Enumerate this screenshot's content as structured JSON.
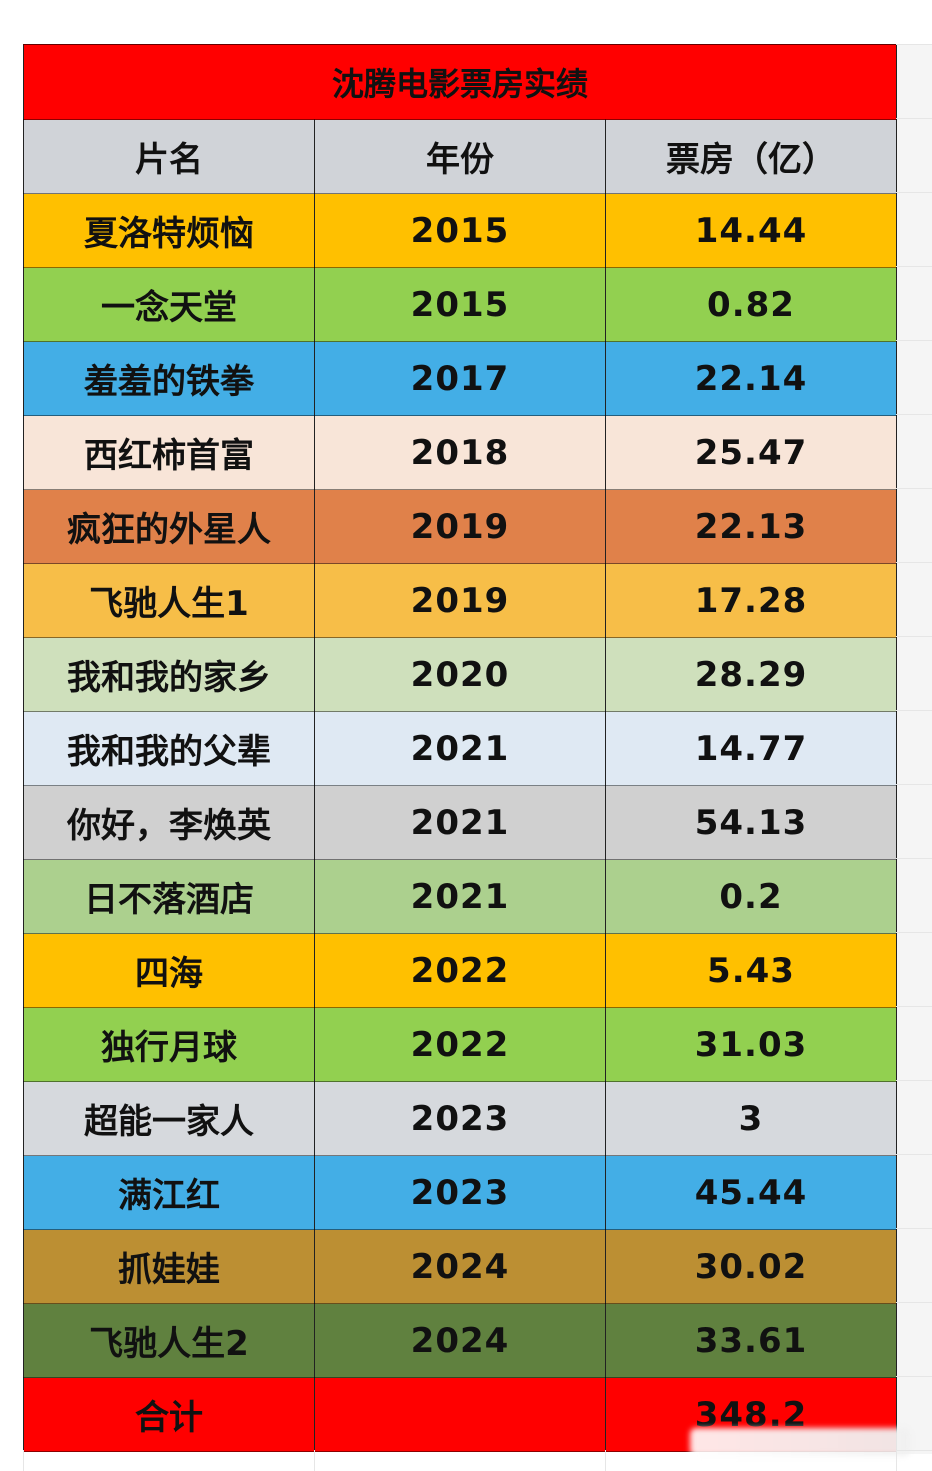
{
  "table": {
    "title": "沈腾电影票房实绩",
    "title_color": "#ff0000",
    "header": {
      "color": "#d0d3d8",
      "columns": [
        "片名",
        "年份",
        "票房（亿）"
      ]
    },
    "rows": [
      {
        "name": "夏洛特烦恼",
        "year": "2015",
        "box_office": "14.44",
        "color": "#ffc000"
      },
      {
        "name": "一念天堂",
        "year": "2015",
        "box_office": "0.82",
        "color": "#92d050"
      },
      {
        "name": "羞羞的铁拳",
        "year": "2017",
        "box_office": "22.14",
        "color": "#43aee6"
      },
      {
        "name": "西红柿首富",
        "year": "2018",
        "box_office": "25.47",
        "color": "#f8e5d8"
      },
      {
        "name": "疯狂的外星人",
        "year": "2019",
        "box_office": "22.13",
        "color": "#e0814a"
      },
      {
        "name": "飞驰人生1",
        "year": "2019",
        "box_office": "17.28",
        "color": "#f7be48"
      },
      {
        "name": "我和我的家乡",
        "year": "2020",
        "box_office": "28.29",
        "color": "#cfe0bc"
      },
      {
        "name": "我和我的父辈",
        "year": "2021",
        "box_office": "14.77",
        "color": "#dfe9f3"
      },
      {
        "name": "你好，李焕英",
        "year": "2021",
        "box_office": "54.13",
        "color": "#d0d0d0"
      },
      {
        "name": "日不落酒店",
        "year": "2021",
        "box_office": "0.2",
        "color": "#acd08e"
      },
      {
        "name": "四海",
        "year": "2022",
        "box_office": "5.43",
        "color": "#ffc000"
      },
      {
        "name": "独行月球",
        "year": "2022",
        "box_office": "31.03",
        "color": "#92d050"
      },
      {
        "name": "超能一家人",
        "year": "2023",
        "box_office": "3",
        "color": "#d6d9dd"
      },
      {
        "name": "满江红",
        "year": "2023",
        "box_office": "45.44",
        "color": "#43aee6"
      },
      {
        "name": "抓娃娃",
        "year": "2024",
        "box_office": "30.02",
        "color": "#bc8f33"
      },
      {
        "name": "飞驰人生2",
        "year": "2024",
        "box_office": "33.61",
        "color": "#60813f"
      }
    ],
    "total": {
      "label": "合计",
      "year": "",
      "box_office": "348.2",
      "color": "#ff0000"
    }
  },
  "chart_data": {
    "type": "table",
    "title": "沈腾电影票房实绩",
    "columns": [
      "片名",
      "年份",
      "票房（亿）"
    ],
    "rows": [
      [
        "夏洛特烦恼",
        2015,
        14.44
      ],
      [
        "一念天堂",
        2015,
        0.82
      ],
      [
        "羞羞的铁拳",
        2017,
        22.14
      ],
      [
        "西红柿首富",
        2018,
        25.47
      ],
      [
        "疯狂的外星人",
        2019,
        22.13
      ],
      [
        "飞驰人生1",
        2019,
        17.28
      ],
      [
        "我和我的家乡",
        2020,
        28.29
      ],
      [
        "我和我的父辈",
        2021,
        14.77
      ],
      [
        "你好，李焕英",
        2021,
        54.13
      ],
      [
        "日不落酒店",
        2021,
        0.2
      ],
      [
        "四海",
        2022,
        5.43
      ],
      [
        "独行月球",
        2022,
        31.03
      ],
      [
        "超能一家人",
        2023,
        3
      ],
      [
        "满江红",
        2023,
        45.44
      ],
      [
        "抓娃娃",
        2024,
        30.02
      ],
      [
        "飞驰人生2",
        2024,
        33.61
      ]
    ],
    "total": [
      "合计",
      "",
      348.2
    ]
  }
}
